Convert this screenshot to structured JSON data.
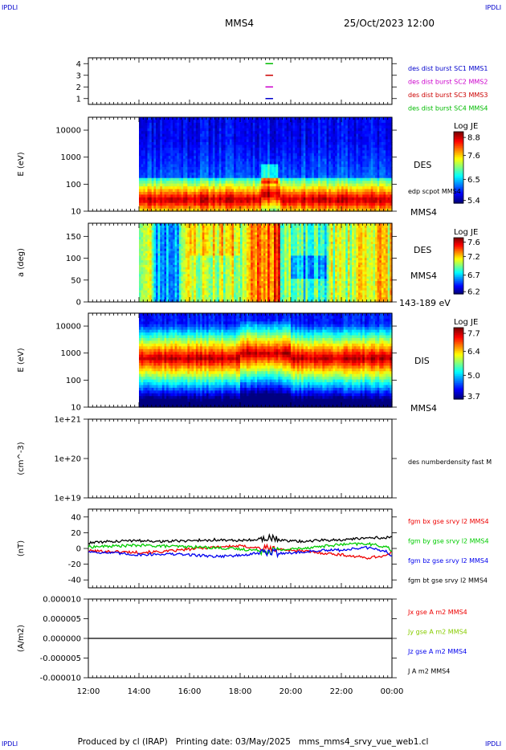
{
  "header": {
    "corner_label": "IPDLI",
    "spacecraft": "MMS4",
    "datetime": "25/Oct/2023 12:00"
  },
  "footer": {
    "produced_by": "Produced by cl (IRAP)",
    "printing_date": "Printing date: 03/May/2025",
    "filename": "mms_mms4_srvy_vue_web1.cl"
  },
  "time_axis": {
    "ticks": [
      "12:00",
      "14:00",
      "16:00",
      "18:00",
      "20:00",
      "22:00",
      "00:00"
    ],
    "start_hour": 12,
    "end_hour": 24
  },
  "chart_data": [
    {
      "id": "burst",
      "type": "scatter",
      "ylim": [
        0.5,
        4.5
      ],
      "yticks": [
        "1",
        "2",
        "3",
        "4"
      ],
      "legend": [
        {
          "label": "des dist burst SC1 MMS1",
          "color": "#0000cc"
        },
        {
          "label": "des dist burst SC2 MMS2",
          "color": "#cc00cc"
        },
        {
          "label": "des dist burst SC3 MMS3",
          "color": "#cc0000"
        },
        {
          "label": "des dist burst SC4 MMS4",
          "color": "#00bb00"
        }
      ],
      "segments": [
        {
          "sc": 4,
          "start": 19.0,
          "end": 19.3,
          "color": "#00bb00"
        },
        {
          "sc": 3,
          "start": 19.0,
          "end": 19.3,
          "color": "#cc0000"
        },
        {
          "sc": 2,
          "start": 19.0,
          "end": 19.3,
          "color": "#cc00cc"
        },
        {
          "sc": 1,
          "start": 19.0,
          "end": 19.3,
          "color": "#0000cc"
        }
      ]
    },
    {
      "id": "des_energy",
      "type": "heatmap",
      "ylabel": "E (eV)",
      "yscale": "log",
      "ylim": [
        10,
        30000
      ],
      "yticks": [
        "10",
        "100",
        "1000",
        "10000"
      ],
      "data_start": 14.0,
      "right_labels": [
        "DES",
        "edp scpot MMS4",
        "MMS4"
      ],
      "colorbar": {
        "title": "Log JE",
        "ticks": [
          "8.8",
          "7.6",
          "6.5",
          "5.4"
        ]
      }
    },
    {
      "id": "des_pitch",
      "type": "heatmap",
      "ylabel": "a (deg)",
      "ylim": [
        0,
        180
      ],
      "yticks": [
        "0",
        "50",
        "100",
        "150"
      ],
      "data_start": 14.0,
      "right_labels": [
        "DES",
        "MMS4",
        "143-189 eV"
      ],
      "colorbar": {
        "title": "Log JE",
        "ticks": [
          "7.6",
          "7.2",
          "6.7",
          "6.2"
        ]
      }
    },
    {
      "id": "dis_energy",
      "type": "heatmap",
      "ylabel": "E (eV)",
      "yscale": "log",
      "ylim": [
        10,
        30000
      ],
      "yticks": [
        "10",
        "100",
        "1000",
        "10000"
      ],
      "data_start": 14.0,
      "right_labels": [
        "DIS",
        "MMS4"
      ],
      "colorbar": {
        "title": "Log JE",
        "ticks": [
          "7.7",
          "6.4",
          "5.0",
          "3.7"
        ]
      }
    },
    {
      "id": "density",
      "type": "line",
      "ylabel": "(cm^-3)",
      "yscale": "log",
      "ylim": [
        1e+19,
        1e+21
      ],
      "yticks": [
        "1e+19",
        "1e+20",
        "1e+21"
      ],
      "legend": [
        {
          "label": "des numberdensity fast M",
          "color": "#000000"
        }
      ],
      "series": []
    },
    {
      "id": "bfield",
      "type": "line",
      "ylabel": "(nT)",
      "ylim": [
        -50,
        50
      ],
      "yticks": [
        "-40",
        "-20",
        "0",
        "20",
        "40"
      ],
      "legend": [
        {
          "label": "fgm bx gse srvy l2 MMS4",
          "color": "#ee0000"
        },
        {
          "label": "fgm by gse srvy l2 MMS4",
          "color": "#00cc00"
        },
        {
          "label": "fgm bz gse srvy l2 MMS4",
          "color": "#0000ee"
        },
        {
          "label": "fgm bt gse srvy l2 MMS4",
          "color": "#000000"
        }
      ],
      "series": [
        {
          "name": "bx",
          "color": "#ee0000",
          "x": [
            12.0,
            13.0,
            14.0,
            15.0,
            16.0,
            17.0,
            18.0,
            19.0,
            20.0,
            21.0,
            22.0,
            23.0,
            23.8,
            24.0
          ],
          "y": [
            -3,
            -4,
            -5,
            -4,
            -1,
            2,
            3,
            0,
            -2,
            -5,
            -8,
            -12,
            -9,
            -5
          ]
        },
        {
          "name": "by",
          "color": "#00cc00",
          "x": [
            12.0,
            13.0,
            14.0,
            15.0,
            16.0,
            17.0,
            18.0,
            19.0,
            20.0,
            21.0,
            22.0,
            23.0,
            23.8,
            24.0
          ],
          "y": [
            2,
            3,
            4,
            3,
            2,
            1,
            -1,
            -3,
            -1,
            2,
            5,
            6,
            2,
            -3
          ]
        },
        {
          "name": "bz",
          "color": "#0000ee",
          "x": [
            12.0,
            13.0,
            14.0,
            15.0,
            16.0,
            17.0,
            18.0,
            19.0,
            20.0,
            21.0,
            22.0,
            23.0,
            23.8,
            24.0
          ],
          "y": [
            -4,
            -6,
            -8,
            -7,
            -8,
            -10,
            -9,
            -5,
            -6,
            -3,
            -2,
            1,
            -4,
            -10
          ]
        },
        {
          "name": "bt",
          "color": "#000000",
          "x": [
            12.0,
            13.0,
            14.0,
            15.0,
            16.0,
            17.0,
            18.0,
            19.0,
            20.0,
            21.0,
            22.0,
            23.0,
            23.8,
            24.0
          ],
          "y": [
            7,
            9,
            10,
            9,
            10,
            11,
            10,
            13,
            9,
            10,
            11,
            13,
            14,
            16
          ]
        }
      ]
    },
    {
      "id": "current",
      "type": "line",
      "ylabel": "(A/m2)",
      "ylim": [
        -1e-05,
        1e-05
      ],
      "yticks": [
        "-0.000010",
        "-0.000005",
        "0.000000",
        "0.000005",
        "0.000010"
      ],
      "legend": [
        {
          "label": "Jx gse A m2 MMS4",
          "color": "#ee0000"
        },
        {
          "label": "Jy gse A m2 MMS4",
          "color": "#88cc00"
        },
        {
          "label": "Jz gse A m2 MMS4",
          "color": "#0000ee"
        },
        {
          "label": "J A m2 MMS4",
          "color": "#000000"
        }
      ],
      "series": [
        {
          "name": "J",
          "color": "#000000",
          "x": [
            12.0,
            24.0
          ],
          "y": [
            0.0,
            0.0
          ]
        }
      ]
    }
  ]
}
